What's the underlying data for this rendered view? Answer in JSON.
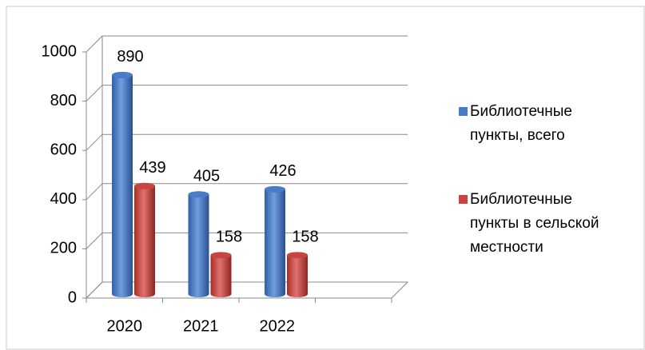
{
  "chart_data": {
    "type": "bar3d",
    "categories": [
      "2020",
      "2021",
      "2022",
      null
    ],
    "series": [
      {
        "name": "Библиотечные пункты, всего",
        "color": "#4a7bc8",
        "values": [
          890,
          405,
          426,
          null
        ]
      },
      {
        "name": "Библиотечные пункты в сельской местности",
        "color": "#c8443f",
        "values": [
          439,
          158,
          158,
          null
        ]
      }
    ],
    "ylim": [
      0,
      1000
    ],
    "yticks": [
      0,
      200,
      400,
      600,
      800,
      1000
    ],
    "grid": true,
    "legend": "right"
  }
}
